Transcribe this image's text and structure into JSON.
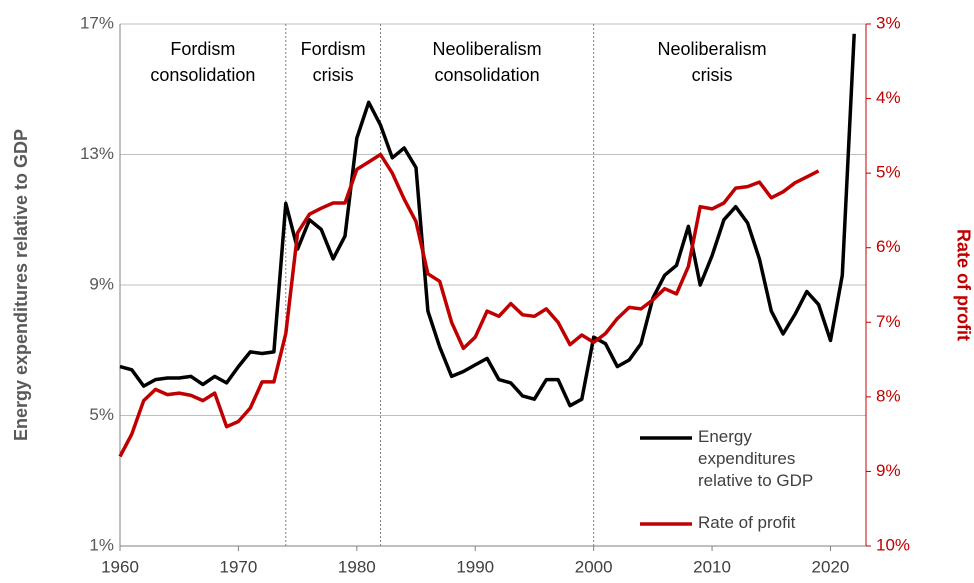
{
  "chart_data": {
    "type": "line",
    "y_label": "Energy expenditures relative to GDP",
    "y2_label": "Rate of profit",
    "annotations": [
      "Fordism consolidation",
      "Fordism crisis",
      "Neoliberalism consolidation",
      "Neoliberalism crisis"
    ],
    "dividers": [
      1974,
      1982,
      2000
    ],
    "x": [
      1960,
      1961,
      1962,
      1963,
      1964,
      1965,
      1966,
      1967,
      1968,
      1969,
      1970,
      1971,
      1972,
      1973,
      1974,
      1975,
      1976,
      1977,
      1978,
      1979,
      1980,
      1981,
      1982,
      1983,
      1984,
      1985,
      1986,
      1987,
      1988,
      1989,
      1990,
      1991,
      1992,
      1993,
      1994,
      1995,
      1996,
      1997,
      1998,
      1999,
      2000,
      2001,
      2002,
      2003,
      2004,
      2005,
      2006,
      2007,
      2008,
      2009,
      2010,
      2011,
      2012,
      2013,
      2014,
      2015,
      2016,
      2017,
      2018,
      2019,
      2020,
      2021,
      2022
    ],
    "series": [
      {
        "name": "Energy expenditures relative to GDP",
        "color": "#000000",
        "axis": "y",
        "values": [
          6.5,
          6.4,
          5.9,
          6.1,
          6.15,
          6.15,
          6.2,
          5.95,
          6.2,
          6.0,
          6.5,
          6.95,
          6.9,
          6.95,
          11.5,
          10.1,
          11.0,
          10.7,
          9.8,
          10.5,
          13.5,
          14.6,
          13.9,
          12.9,
          13.2,
          12.6,
          8.2,
          7.1,
          6.2,
          6.35,
          6.55,
          6.75,
          6.1,
          6.0,
          5.6,
          5.5,
          6.1,
          6.1,
          5.3,
          5.5,
          7.4,
          7.2,
          6.5,
          6.7,
          7.2,
          8.6,
          9.3,
          9.6,
          10.8,
          9.0,
          9.9,
          11.0,
          11.4,
          10.9,
          9.8,
          8.2,
          7.5,
          8.1,
          8.8,
          8.4,
          7.3,
          9.3,
          16.7
        ]
      },
      {
        "name": "Rate of profit",
        "color": "#c00000",
        "axis": "y2",
        "values": [
          8.8,
          8.5,
          8.05,
          7.9,
          7.97,
          7.95,
          7.98,
          8.05,
          7.95,
          8.4,
          8.33,
          8.15,
          7.8,
          7.8,
          7.15,
          5.8,
          5.55,
          5.47,
          5.4,
          5.4,
          4.95,
          4.85,
          4.75,
          5.0,
          5.35,
          5.65,
          6.35,
          6.45,
          7.0,
          7.35,
          7.2,
          6.85,
          6.92,
          6.75,
          6.9,
          6.92,
          6.82,
          7.0,
          7.3,
          7.17,
          7.27,
          7.15,
          6.95,
          6.8,
          6.82,
          6.7,
          6.55,
          6.62,
          6.25,
          5.45,
          5.48,
          5.4,
          5.2,
          5.18,
          5.12,
          5.33,
          5.25,
          5.13,
          5.05,
          4.97,
          null,
          null,
          null
        ]
      }
    ],
    "xlim": [
      1960,
      2023
    ],
    "xticks": [
      1960,
      1970,
      1980,
      1990,
      2000,
      2010,
      2020
    ],
    "ylim": [
      1,
      17
    ],
    "yticks": [
      {
        "value": 1,
        "label": "1%"
      },
      {
        "value": 5,
        "label": "5%"
      },
      {
        "value": 9,
        "label": "9%"
      },
      {
        "value": 13,
        "label": "13%"
      },
      {
        "value": 17,
        "label": "17%"
      }
    ],
    "y2lim": [
      10,
      3
    ],
    "y2ticks": [
      {
        "value": 3,
        "label": "3%"
      },
      {
        "value": 4,
        "label": "4%"
      },
      {
        "value": 5,
        "label": "5%"
      },
      {
        "value": 6,
        "label": "6%"
      },
      {
        "value": 7,
        "label": "7%"
      },
      {
        "value": 8,
        "label": "8%"
      },
      {
        "value": 9,
        "label": "9%"
      },
      {
        "value": 10,
        "label": "10%"
      }
    ],
    "grid": true,
    "legend": "lower right"
  }
}
